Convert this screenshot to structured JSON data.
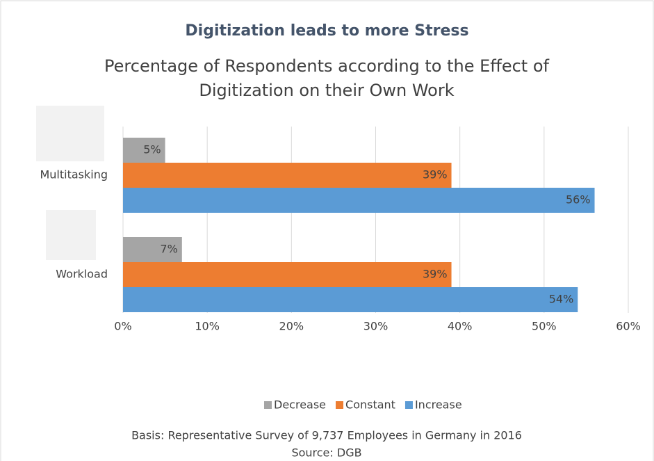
{
  "chart_data": {
    "type": "bar",
    "orientation": "horizontal",
    "title": "Digitization leads to more Stress",
    "subtitle": "Percentage of Respondents according to the Effect of Digitization on their Own Work",
    "categories": [
      "Multitasking",
      "Workload"
    ],
    "series": [
      {
        "name": "Decrease",
        "color": "#a5a5a5",
        "values": [
          5,
          7
        ],
        "value_labels": [
          "5%",
          "7%"
        ]
      },
      {
        "name": "Constant",
        "color": "#ed7d31",
        "values": [
          39,
          39
        ],
        "value_labels": [
          "39%",
          "39%"
        ]
      },
      {
        "name": "Increase",
        "color": "#5b9bd5",
        "values": [
          56,
          54
        ],
        "value_labels": [
          "56%",
          "54%"
        ]
      }
    ],
    "xlim": [
      0,
      60
    ],
    "xticks": [
      {
        "value": 0,
        "label": "0%"
      },
      {
        "value": 10,
        "label": "10%"
      },
      {
        "value": 20,
        "label": "20%"
      },
      {
        "value": 30,
        "label": "30%"
      },
      {
        "value": 40,
        "label": "40%"
      },
      {
        "value": 50,
        "label": "50%"
      },
      {
        "value": 60,
        "label": "60%"
      }
    ],
    "grid": true,
    "legend": "bottom",
    "notes": [
      "Basis: Representative Survey of 9,737 Employees in Germany in 2016",
      "Source: DGB"
    ]
  }
}
